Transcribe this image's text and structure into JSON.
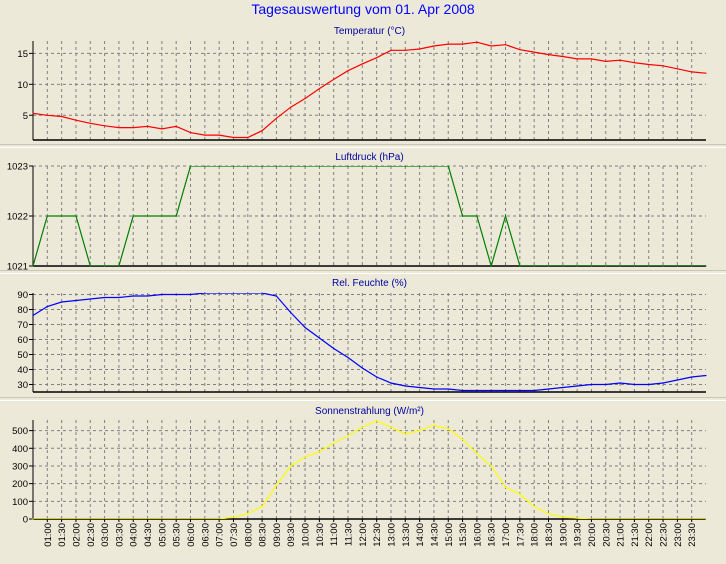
{
  "page": {
    "title": "Tagesauswertung vom 01. Apr 2008"
  },
  "x_ticks": [
    "01:00",
    "01:30",
    "02:00",
    "02:30",
    "03:00",
    "03:30",
    "04:00",
    "04:30",
    "05:00",
    "05:30",
    "06:00",
    "06:30",
    "07:00",
    "07:30",
    "08:00",
    "08:30",
    "09:00",
    "09:30",
    "10:00",
    "10:30",
    "11:00",
    "11:30",
    "12:00",
    "12:30",
    "13:00",
    "13:30",
    "14:00",
    "14:30",
    "15:00",
    "15:30",
    "16:00",
    "16:30",
    "17:00",
    "17:30",
    "18:00",
    "18:30",
    "19:00",
    "19:30",
    "20:00",
    "20:30",
    "21:00",
    "21:30",
    "22:00",
    "22:30",
    "23:00",
    "23:30"
  ],
  "chart_data": [
    {
      "type": "line",
      "title": "Temperatur (°C)",
      "color": "#ff0000",
      "ylim": [
        1,
        17
      ],
      "yticks": [
        5,
        10,
        15
      ],
      "x": [
        "00:30",
        "01:00",
        "01:30",
        "02:00",
        "02:30",
        "03:00",
        "03:30",
        "04:00",
        "04:30",
        "05:00",
        "05:30",
        "06:00",
        "06:30",
        "07:00",
        "07:30",
        "08:00",
        "08:30",
        "09:00",
        "09:30",
        "10:00",
        "10:30",
        "11:00",
        "11:30",
        "12:00",
        "12:30",
        "13:00",
        "13:30",
        "14:00",
        "14:30",
        "15:00",
        "15:30",
        "16:00",
        "16:30",
        "17:00",
        "17:30",
        "18:00",
        "18:30",
        "19:00",
        "19:30",
        "20:00",
        "20:30",
        "21:00",
        "21:30",
        "22:00",
        "22:30",
        "23:00",
        "23:30",
        "24:00"
      ],
      "values": [
        5.3,
        5.0,
        4.8,
        4.2,
        3.7,
        3.3,
        3.0,
        3.0,
        3.2,
        2.8,
        3.2,
        2.2,
        1.8,
        1.8,
        1.4,
        1.4,
        2.5,
        4.5,
        6.3,
        7.7,
        9.3,
        10.8,
        12.2,
        13.3,
        14.3,
        15.5,
        15.5,
        15.7,
        16.2,
        16.5,
        16.5,
        16.8,
        16.2,
        16.4,
        15.6,
        15.2,
        14.8,
        14.5,
        14.1,
        14.1,
        13.7,
        13.9,
        13.5,
        13.2,
        13.0,
        12.5,
        12.0,
        11.8
      ]
    },
    {
      "type": "line",
      "title": "Luftdruck (hPa)",
      "color": "#008000",
      "ylim": [
        1021,
        1023
      ],
      "yticks": [
        1021,
        1022,
        1023
      ],
      "x": [
        "00:30",
        "01:00",
        "01:30",
        "02:00",
        "02:30",
        "03:00",
        "03:30",
        "04:00",
        "04:30",
        "05:00",
        "05:30",
        "06:00",
        "06:30",
        "07:00",
        "07:30",
        "08:00",
        "08:30",
        "09:00",
        "09:30",
        "10:00",
        "10:30",
        "11:00",
        "11:30",
        "12:00",
        "12:30",
        "13:00",
        "13:30",
        "14:00",
        "14:30",
        "15:00",
        "15:30",
        "16:00",
        "16:30",
        "17:00",
        "17:30",
        "18:00",
        "18:30",
        "19:00",
        "19:30",
        "20:00",
        "20:30",
        "21:00",
        "21:30",
        "22:00",
        "22:30",
        "23:00",
        "23:30",
        "24:00"
      ],
      "values": [
        1021,
        1022,
        1022,
        1022,
        1021,
        1021,
        1021,
        1022,
        1022,
        1022,
        1022,
        1023,
        1023,
        1023,
        1023,
        1023,
        1023,
        1023,
        1023,
        1023,
        1023,
        1023,
        1023,
        1023,
        1023,
        1023,
        1023,
        1023,
        1023,
        1023,
        1022,
        1022,
        1021,
        1022,
        1021,
        1021,
        1021,
        1021,
        1021,
        1021,
        1021,
        1021,
        1021,
        1021,
        1021,
        1021,
        1021,
        1021
      ]
    },
    {
      "type": "line",
      "title": "Rel. Feuchte (%)",
      "color": "#0000ff",
      "ylim": [
        25,
        91
      ],
      "yticks": [
        30,
        40,
        50,
        60,
        70,
        80,
        90
      ],
      "x": [
        "00:30",
        "01:00",
        "01:30",
        "02:00",
        "02:30",
        "03:00",
        "03:30",
        "04:00",
        "04:30",
        "05:00",
        "05:30",
        "06:00",
        "06:30",
        "07:00",
        "07:30",
        "08:00",
        "08:30",
        "09:00",
        "09:30",
        "10:00",
        "10:30",
        "11:00",
        "11:30",
        "12:00",
        "12:30",
        "13:00",
        "13:30",
        "14:00",
        "14:30",
        "15:00",
        "15:30",
        "16:00",
        "16:30",
        "17:00",
        "17:30",
        "18:00",
        "18:30",
        "19:00",
        "19:30",
        "20:00",
        "20:30",
        "21:00",
        "21:30",
        "22:00",
        "22:30",
        "23:00",
        "23:30",
        "24:00"
      ],
      "values": [
        76,
        82,
        85,
        86,
        87,
        88,
        88,
        89,
        89,
        90,
        90,
        90,
        91,
        91,
        91,
        91,
        91,
        89,
        78,
        68,
        61,
        54,
        48,
        41,
        35,
        31,
        29,
        28,
        27,
        27,
        26,
        26,
        26,
        26,
        26,
        26,
        27,
        28,
        29,
        30,
        30,
        31,
        30,
        30,
        31,
        33,
        35,
        36
      ]
    },
    {
      "type": "line",
      "title": "Sonnenstrahlung (W/m²)",
      "color": "#ffff00",
      "ylim": [
        0,
        560
      ],
      "yticks": [
        0,
        100,
        200,
        300,
        400,
        500
      ],
      "x": [
        "00:30",
        "01:00",
        "01:30",
        "02:00",
        "02:30",
        "03:00",
        "03:30",
        "04:00",
        "04:30",
        "05:00",
        "05:30",
        "06:00",
        "06:30",
        "07:00",
        "07:30",
        "08:00",
        "08:30",
        "09:00",
        "09:30",
        "10:00",
        "10:30",
        "11:00",
        "11:30",
        "12:00",
        "12:30",
        "13:00",
        "13:30",
        "14:00",
        "14:30",
        "15:00",
        "15:30",
        "16:00",
        "16:30",
        "17:00",
        "17:30",
        "18:00",
        "18:30",
        "19:00",
        "19:30",
        "20:00",
        "20:30",
        "21:00",
        "21:30",
        "22:00",
        "22:30",
        "23:00",
        "23:30",
        "24:00"
      ],
      "values": [
        0,
        0,
        0,
        0,
        0,
        0,
        0,
        0,
        0,
        0,
        0,
        0,
        0,
        0,
        10,
        30,
        70,
        190,
        300,
        350,
        380,
        430,
        470,
        520,
        555,
        520,
        480,
        500,
        530,
        510,
        450,
        370,
        300,
        180,
        140,
        70,
        30,
        10,
        5,
        0,
        0,
        0,
        0,
        0,
        0,
        0,
        0,
        0
      ]
    }
  ]
}
